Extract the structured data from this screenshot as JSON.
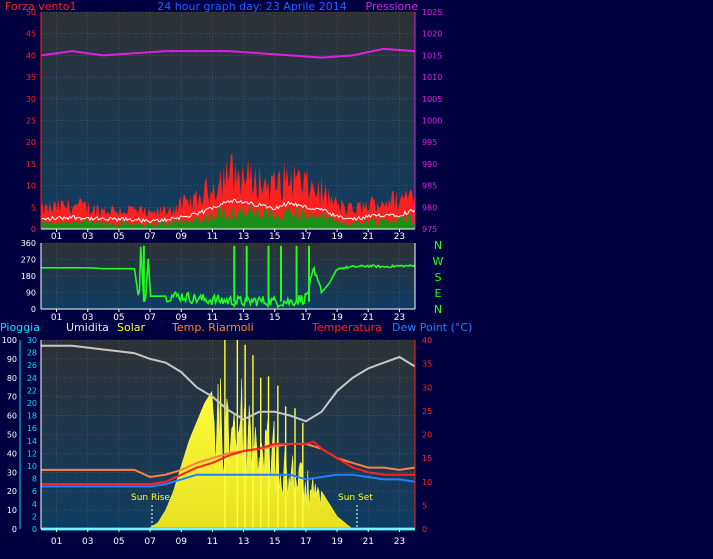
{
  "colors": {
    "background": "#000040",
    "plot_gradient_top": "#2e3135",
    "plot_gradient_bottom": "#0e3d63",
    "wind_gust": "#ff2020",
    "wind_avg": "#1a8f1a",
    "wind_white": "#ffffff",
    "pressure": "#e020e0",
    "wind_dir": "#20ff20",
    "rain": "#00e0ff",
    "humidity": "#c8c8c8",
    "solar": "#ffff20",
    "temp_riarmoli": "#ff8040",
    "temperature": "#ff2020",
    "dew_point": "#2080ff",
    "grid": "#606060",
    "axis_text": "#ffffff"
  },
  "top_panel": {
    "left_title": "Forza vento1",
    "center_title": "24 hour graph day: 23 Aprile 2014",
    "right_title": "Pressione"
  },
  "dir_panel": {
    "compass": [
      "N",
      "W",
      "S",
      "E",
      "N"
    ]
  },
  "bottom_panel": {
    "labels": {
      "rain": "Pioggia",
      "humidity": "Umidita",
      "solar": "Solar",
      "temp_riarmoli": "Temp. Riarmoli",
      "temperature": "Temperatura",
      "dew_point": "Dew Point (°C)"
    },
    "sun_rise": "Sun Rise",
    "sun_set": "Sun Set"
  },
  "chart_data": [
    {
      "type": "line",
      "title": "24 hour graph day: 23 Aprile 2014",
      "x_ticks": [
        "01",
        "03",
        "05",
        "07",
        "09",
        "11",
        "13",
        "15",
        "17",
        "19",
        "21",
        "23"
      ],
      "y_left_ticks": [
        0,
        5,
        10,
        15,
        20,
        25,
        30,
        35,
        40,
        45,
        50
      ],
      "ylim_left": [
        0,
        50
      ],
      "y_right_ticks": [
        975,
        980,
        985,
        990,
        995,
        1000,
        1005,
        1010,
        1015,
        1020,
        1025
      ],
      "ylim_right": [
        975,
        1025
      ],
      "grid": true,
      "series": [
        {
          "name": "Forza vento1",
          "axis": "left",
          "x": [
            0,
            2,
            4,
            6,
            7,
            8,
            10,
            11,
            12,
            13,
            14,
            15,
            16,
            17,
            18,
            19,
            20,
            21,
            22,
            23,
            24
          ],
          "values": [
            4,
            5,
            4,
            4,
            3,
            4,
            6,
            9,
            12,
            11,
            10,
            9,
            11,
            9,
            8,
            5,
            4,
            5,
            6,
            6,
            8
          ]
        },
        {
          "name": "Pressione",
          "axis": "right",
          "x": [
            0,
            2,
            4,
            6,
            8,
            10,
            12,
            14,
            16,
            18,
            20,
            22,
            24
          ],
          "values": [
            1015,
            1016,
            1015,
            1015.5,
            1016,
            1016,
            1016,
            1015.5,
            1015,
            1014.5,
            1015,
            1016.5,
            1016
          ]
        }
      ]
    },
    {
      "type": "line",
      "x_ticks": [
        "01",
        "03",
        "05",
        "07",
        "09",
        "11",
        "13",
        "15",
        "17",
        "19",
        "21",
        "23"
      ],
      "y_ticks": [
        0,
        90,
        180,
        270,
        360
      ],
      "ylim": [
        0,
        360
      ],
      "grid": true,
      "series": [
        {
          "x": [
            0,
            1,
            2,
            3,
            4,
            5,
            6,
            6.3,
            6.4,
            6.6,
            6.7,
            6.9,
            7,
            7.5,
            8,
            9,
            10,
            11,
            12,
            13,
            14,
            15,
            16,
            17,
            17.5,
            18,
            18.5,
            19,
            20,
            21,
            22,
            23,
            24
          ],
          "values": [
            225,
            225,
            225,
            225,
            220,
            220,
            220,
            40,
            340,
            40,
            40,
            300,
            70,
            70,
            70,
            70,
            55,
            50,
            45,
            40,
            45,
            40,
            40,
            60,
            200,
            90,
            140,
            220,
            230,
            235,
            230,
            235,
            235
          ]
        }
      ]
    },
    {
      "type": "line",
      "x_ticks": [
        "01",
        "03",
        "05",
        "07",
        "09",
        "11",
        "13",
        "15",
        "17",
        "19",
        "21",
        "23"
      ],
      "y_left_ticks": [
        0,
        10,
        20,
        30,
        40,
        50,
        60,
        70,
        80,
        90,
        100
      ],
      "ylim_left": [
        0,
        100
      ],
      "y_inner_ticks": [
        0,
        2,
        4,
        6,
        8,
        10,
        12,
        14,
        16,
        18,
        20,
        22,
        24,
        26,
        28,
        30
      ],
      "ylim_inner": [
        0,
        30
      ],
      "y_right_ticks": [
        0,
        5,
        10,
        15,
        20,
        25,
        30,
        35,
        40
      ],
      "ylim_right": [
        0,
        40
      ],
      "grid": true,
      "series": [
        {
          "name": "Pioggia",
          "axis": "left",
          "x": [
            0,
            24
          ],
          "values": [
            0,
            0
          ]
        },
        {
          "name": "Umidita",
          "axis": "left",
          "x": [
            0,
            2,
            4,
            6,
            7,
            8,
            9,
            10,
            11,
            12,
            13,
            14,
            15,
            16,
            17,
            18,
            19,
            20,
            21,
            22,
            23,
            24
          ],
          "values": [
            97,
            97,
            95,
            93,
            90,
            88,
            83,
            75,
            70,
            63,
            58,
            62,
            62,
            60,
            57,
            62,
            73,
            80,
            85,
            88,
            91,
            86
          ]
        },
        {
          "name": "Solar",
          "axis": "inner",
          "x": [
            0,
            6.5,
            7,
            7.5,
            8,
            8.5,
            9,
            9.5,
            10,
            10.5,
            11,
            11.5,
            12,
            12.5,
            13,
            13.5,
            14,
            14.5,
            15,
            15.5,
            16,
            16.5,
            17,
            17.5,
            18,
            18.5,
            19,
            19.5,
            20,
            24
          ],
          "values": [
            0,
            0,
            0.2,
            1,
            3,
            6,
            10,
            14,
            17,
            20,
            22,
            24,
            25,
            26,
            25,
            22,
            20,
            19,
            17,
            15,
            14,
            12,
            10,
            8,
            6,
            4,
            2,
            1,
            0,
            0
          ]
        },
        {
          "name": "Temp. Riarmoli",
          "axis": "right",
          "x": [
            0,
            2,
            4,
            6,
            7,
            8,
            9,
            10,
            12,
            14,
            16,
            17,
            18,
            19,
            20,
            21,
            22,
            23,
            24
          ],
          "values": [
            12.5,
            12.5,
            12.5,
            12.5,
            11,
            11.5,
            12.5,
            14,
            16,
            17,
            18,
            18,
            17,
            15,
            14,
            13,
            13,
            12.5,
            13
          ]
        },
        {
          "name": "Temperatura",
          "axis": "right",
          "x": [
            0,
            2,
            4,
            6,
            7,
            8,
            9,
            10,
            11,
            12,
            13,
            14,
            15,
            16,
            17,
            17.5,
            18,
            19,
            20,
            21,
            22,
            23,
            24
          ],
          "values": [
            9.5,
            9.5,
            9.5,
            9.5,
            9.5,
            10,
            11.5,
            13,
            14,
            15.5,
            16.5,
            17,
            18,
            18,
            18,
            18.5,
            17,
            15,
            13,
            12,
            11.5,
            11.5,
            11.5
          ]
        },
        {
          "name": "Dew Point (°C)",
          "axis": "right",
          "x": [
            0,
            2,
            4,
            6,
            7,
            8,
            9,
            10,
            11,
            12,
            13,
            14,
            15,
            16,
            17,
            18,
            19,
            20,
            21,
            22,
            23,
            24
          ],
          "values": [
            9,
            9,
            9,
            9,
            9,
            9.5,
            10.5,
            11.5,
            11.5,
            11.5,
            11.5,
            11.5,
            11.5,
            11.5,
            10.5,
            11,
            11.5,
            11.5,
            11,
            10.5,
            10.5,
            10
          ]
        }
      ]
    }
  ]
}
